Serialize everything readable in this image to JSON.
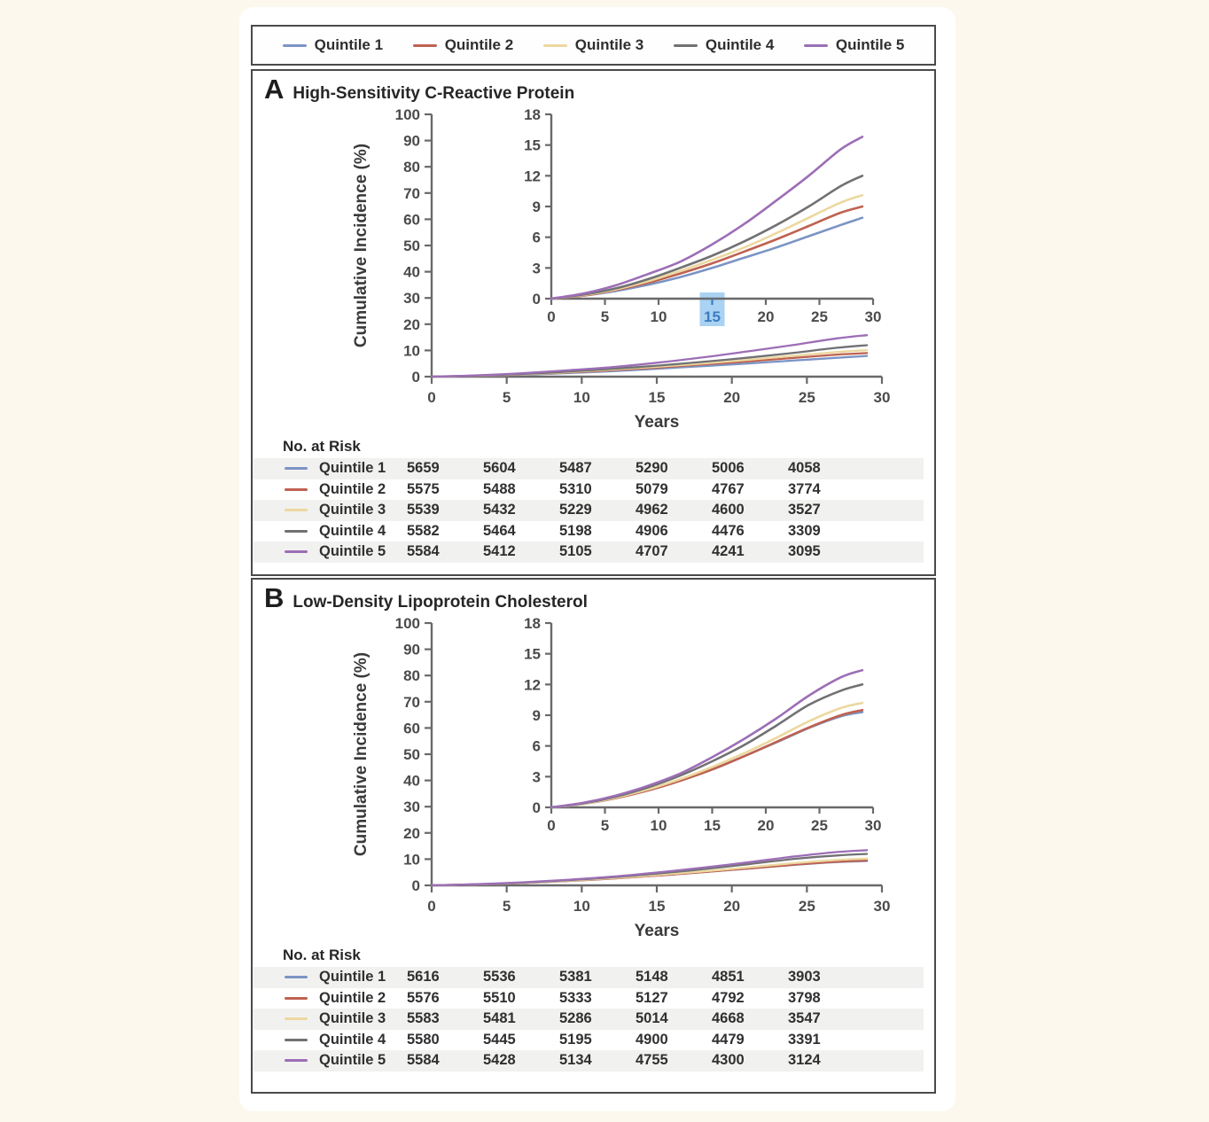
{
  "legend": {
    "items": [
      {
        "label": "Quintile 1",
        "color": "#7b94c4"
      },
      {
        "label": "Quintile 2",
        "color": "#bf6150"
      },
      {
        "label": "Quintile 3",
        "color": "#ecd8a0"
      },
      {
        "label": "Quintile 4",
        "color": "#717174"
      },
      {
        "label": "Quintile 5",
        "color": "#9c6eb6"
      }
    ]
  },
  "panels": [
    {
      "letter": "A",
      "title": "High-Sensitivity C-Reactive Protein"
    },
    {
      "letter": "B",
      "title": "Low-Density Lipoprotein Cholesterol"
    }
  ],
  "colors": {
    "axis": "#69696b",
    "tick_text": "#4b4b4d",
    "highlight_bg": "#a9d2f3",
    "highlight_text": "#3c7cc0"
  },
  "chart_data": [
    {
      "type": "line",
      "title": "A High-Sensitivity C-Reactive Protein",
      "xlabel": "Years",
      "ylabel": "Cumulative Incidence (%)",
      "xlim": [
        0,
        30
      ],
      "ylim_main": [
        0,
        100
      ],
      "ylim_inset": [
        0,
        18
      ],
      "xticks": [
        0,
        5,
        10,
        15,
        20,
        25,
        30
      ],
      "main_yticks": [
        0,
        10,
        20,
        30,
        40,
        50,
        60,
        70,
        80,
        90,
        100
      ],
      "inset_yticks": [
        0,
        3,
        6,
        9,
        12,
        15,
        18
      ],
      "highlighted_xtick": 15,
      "grid": false,
      "legend_position": "top",
      "x": [
        0,
        3,
        6,
        9,
        12,
        15,
        18,
        21,
        24,
        27,
        29
      ],
      "series": [
        {
          "name": "Quintile 1",
          "color": "#7b94c4",
          "values": [
            0,
            0.3,
            0.75,
            1.35,
            2.1,
            3.0,
            4.0,
            5.0,
            6.1,
            7.2,
            7.9
          ]
        },
        {
          "name": "Quintile 2",
          "color": "#bf6150",
          "values": [
            0,
            0.3,
            0.85,
            1.55,
            2.45,
            3.45,
            4.6,
            5.8,
            7.1,
            8.4,
            9.0
          ]
        },
        {
          "name": "Quintile 3",
          "color": "#ecd8a0",
          "values": [
            0,
            0.35,
            0.9,
            1.7,
            2.7,
            3.8,
            5.0,
            6.4,
            7.9,
            9.4,
            10.1
          ]
        },
        {
          "name": "Quintile 4",
          "color": "#717174",
          "values": [
            0,
            0.4,
            1.0,
            1.9,
            3.0,
            4.2,
            5.6,
            7.2,
            9.0,
            11.0,
            12.0
          ]
        },
        {
          "name": "Quintile 5",
          "color": "#9c6eb6",
          "values": [
            0,
            0.5,
            1.3,
            2.4,
            3.6,
            5.3,
            7.3,
            9.6,
            12.0,
            14.6,
            15.8
          ]
        }
      ],
      "no_at_risk": {
        "header": "No. at Risk",
        "years": [
          0,
          5,
          10,
          15,
          20,
          25
        ],
        "rows": [
          {
            "name": "Quintile 1",
            "values": [
              5659,
              5604,
              5487,
              5290,
              5006,
              4058
            ]
          },
          {
            "name": "Quintile 2",
            "values": [
              5575,
              5488,
              5310,
              5079,
              4767,
              3774
            ]
          },
          {
            "name": "Quintile 3",
            "values": [
              5539,
              5432,
              5229,
              4962,
              4600,
              3527
            ]
          },
          {
            "name": "Quintile 4",
            "values": [
              5582,
              5464,
              5198,
              4906,
              4476,
              3309
            ]
          },
          {
            "name": "Quintile 5",
            "values": [
              5584,
              5412,
              5105,
              4707,
              4241,
              3095
            ]
          }
        ]
      }
    },
    {
      "type": "line",
      "title": "B Low-Density Lipoprotein Cholesterol",
      "xlabel": "Years",
      "ylabel": "Cumulative Incidence (%)",
      "xlim": [
        0,
        30
      ],
      "ylim_main": [
        0,
        100
      ],
      "ylim_inset": [
        0,
        18
      ],
      "xticks": [
        0,
        5,
        10,
        15,
        20,
        25,
        30
      ],
      "main_yticks": [
        0,
        10,
        20,
        30,
        40,
        50,
        60,
        70,
        80,
        90,
        100
      ],
      "inset_yticks": [
        0,
        3,
        6,
        9,
        12,
        15,
        18
      ],
      "highlighted_xtick": null,
      "grid": false,
      "legend_position": "top",
      "x": [
        0,
        3,
        6,
        9,
        12,
        15,
        18,
        21,
        24,
        27,
        29
      ],
      "series": [
        {
          "name": "Quintile 1",
          "color": "#7b94c4",
          "values": [
            0,
            0.35,
            0.9,
            1.65,
            2.6,
            3.7,
            5.0,
            6.35,
            7.75,
            8.9,
            9.3
          ]
        },
        {
          "name": "Quintile 2",
          "color": "#bf6150",
          "values": [
            0,
            0.35,
            0.9,
            1.65,
            2.6,
            3.7,
            5.0,
            6.4,
            7.8,
            9.0,
            9.5
          ]
        },
        {
          "name": "Quintile 3",
          "color": "#ecd8a0",
          "values": [
            0,
            0.35,
            0.95,
            1.75,
            2.75,
            3.95,
            5.3,
            6.8,
            8.4,
            9.7,
            10.2
          ]
        },
        {
          "name": "Quintile 4",
          "color": "#717174",
          "values": [
            0,
            0.4,
            1.05,
            1.95,
            3.1,
            4.5,
            6.1,
            8.0,
            10.0,
            11.4,
            12.0
          ]
        },
        {
          "name": "Quintile 5",
          "color": "#9c6eb6",
          "values": [
            0,
            0.45,
            1.15,
            2.1,
            3.3,
            4.9,
            6.7,
            8.7,
            10.9,
            12.7,
            13.4
          ]
        }
      ],
      "no_at_risk": {
        "header": "No. at Risk",
        "years": [
          0,
          5,
          10,
          15,
          20,
          25
        ],
        "rows": [
          {
            "name": "Quintile 1",
            "values": [
              5616,
              5536,
              5381,
              5148,
              4851,
              3903
            ]
          },
          {
            "name": "Quintile 2",
            "values": [
              5576,
              5510,
              5333,
              5127,
              4792,
              3798
            ]
          },
          {
            "name": "Quintile 3",
            "values": [
              5583,
              5481,
              5286,
              5014,
              4668,
              3547
            ]
          },
          {
            "name": "Quintile 4",
            "values": [
              5580,
              5445,
              5195,
              4900,
              4479,
              3391
            ]
          },
          {
            "name": "Quintile 5",
            "values": [
              5584,
              5428,
              5134,
              4755,
              4300,
              3124
            ]
          }
        ]
      }
    }
  ]
}
